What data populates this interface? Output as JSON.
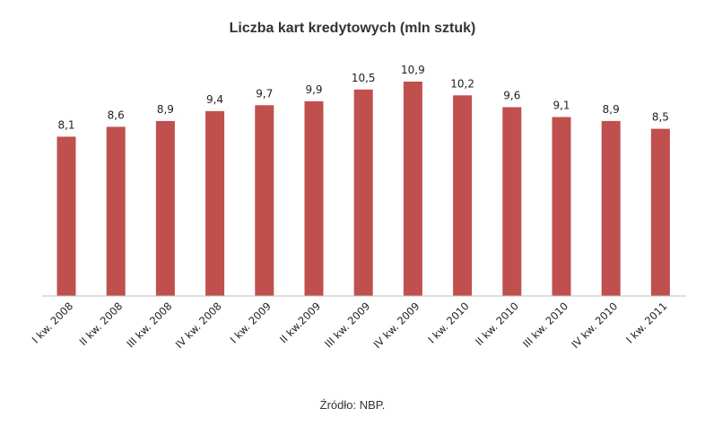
{
  "chart_data": {
    "type": "bar",
    "title": "Liczba kart kredytowych (mln sztuk)",
    "categories": [
      "I kw. 2008",
      "II kw. 2008",
      "III kw. 2008",
      "IV kw. 2008",
      "I kw. 2009",
      "II kw.2009",
      "III kw. 2009",
      "IV kw. 2009",
      "I kw. 2010",
      "II kw. 2010",
      "III kw. 2010",
      "IV kw. 2010",
      "I kw. 2011"
    ],
    "values": [
      8.1,
      8.6,
      8.9,
      9.4,
      9.7,
      9.9,
      10.5,
      10.9,
      10.2,
      9.6,
      9.1,
      8.9,
      8.5
    ],
    "value_labels": [
      "8,1",
      "8,6",
      "8,9",
      "9,4",
      "9,7",
      "9,9",
      "10,5",
      "10,9",
      "10,2",
      "9,6",
      "9,1",
      "8,9",
      "8,5"
    ],
    "ylim": [
      0,
      10.9
    ],
    "grid": false,
    "bar_color": "#c0504d",
    "source": "Źródło: NBP."
  }
}
